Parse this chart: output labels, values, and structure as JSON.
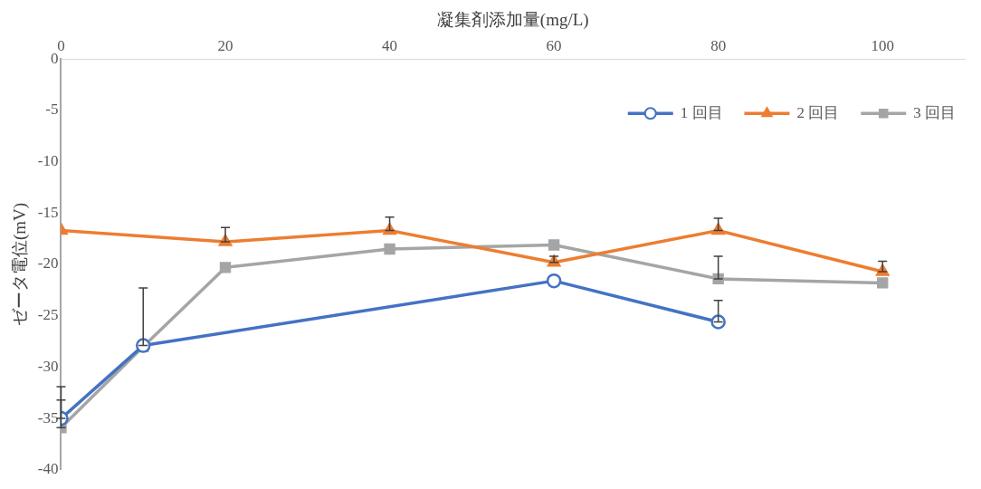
{
  "chart_data": {
    "type": "line",
    "xlabel": "凝集剤添加量(mg/L)",
    "ylabel": "ゼータ電位(mV)",
    "xlim": [
      0,
      110
    ],
    "xticks": [
      0,
      20,
      40,
      60,
      80,
      100
    ],
    "ylim": [
      -40,
      0
    ],
    "yticks": [
      0,
      -5,
      -10,
      -15,
      -20,
      -25,
      -30,
      -35,
      -40
    ],
    "grid": false,
    "legend": "top right",
    "line_style": "solid",
    "series": [
      {
        "name": "1 回目",
        "color": "#4472c4",
        "marker": "circle",
        "x": [
          0,
          10,
          60,
          80
        ],
        "values": [
          -35.0,
          -27.9,
          -21.6,
          -25.6
        ],
        "errors": [
          [
            -35.0,
            -31.9
          ],
          [
            -27.9,
            -22.3
          ],
          null,
          [
            -25.6,
            -23.5
          ]
        ]
      },
      {
        "name": "2 回目",
        "color": "#ed7d31",
        "marker": "triangle",
        "x": [
          0,
          20,
          40,
          60,
          80,
          100
        ],
        "values": [
          -16.7,
          -17.8,
          -16.7,
          -19.8,
          -16.7,
          -20.7
        ],
        "errors": [
          null,
          [
            -17.8,
            -16.4
          ],
          [
            -16.7,
            -15.4
          ],
          [
            -19.8,
            -19.2
          ],
          [
            -16.7,
            -15.5
          ],
          [
            -20.7,
            -19.7
          ]
        ]
      },
      {
        "name": "3 回目",
        "color": "#a5a5a5",
        "marker": "square",
        "x": [
          0,
          10,
          20,
          40,
          60,
          80,
          100
        ],
        "values": [
          -35.9,
          -28.0,
          -20.3,
          -18.5,
          -18.1,
          -21.4,
          -21.8
        ],
        "errors": [
          [
            -35.9,
            -33.2
          ],
          null,
          null,
          null,
          null,
          [
            -21.4,
            -19.2
          ],
          null
        ]
      }
    ]
  }
}
